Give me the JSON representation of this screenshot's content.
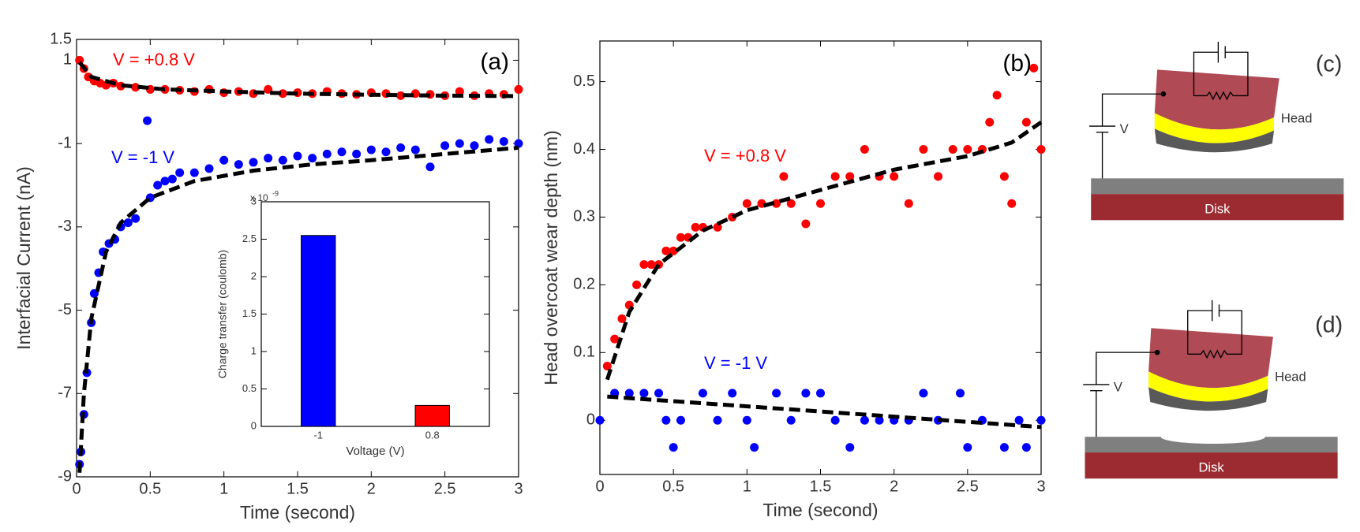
{
  "chart_data": [
    {
      "type": "scatter",
      "label": "(a)",
      "x_label": "Time (second)",
      "y_label": "Interfacial Current (nA)",
      "xlim": [
        0,
        3
      ],
      "ylim": [
        -9,
        1.5
      ],
      "xticks": [
        0,
        0.5,
        1,
        1.5,
        2,
        2.5,
        3
      ],
      "yticks": [
        -9,
        -7,
        -5,
        -3,
        -1,
        1,
        1.5
      ],
      "annotations": [
        {
          "text": "V = +0.8 V",
          "color": "#ff0000"
        },
        {
          "text": "V = -1 V",
          "color": "#0000ff"
        }
      ],
      "series": [
        {
          "color": "#ff0000",
          "x": [
            0.02,
            0.05,
            0.08,
            0.12,
            0.16,
            0.2,
            0.25,
            0.3,
            0.4,
            0.5,
            0.6,
            0.7,
            0.8,
            0.9,
            1.0,
            1.1,
            1.2,
            1.3,
            1.4,
            1.5,
            1.6,
            1.7,
            1.8,
            1.9,
            2.0,
            2.1,
            2.2,
            2.3,
            2.4,
            2.5,
            2.6,
            2.7,
            2.8,
            2.9,
            3.0
          ],
          "values": [
            1.0,
            0.8,
            0.6,
            0.5,
            0.45,
            0.4,
            0.45,
            0.38,
            0.35,
            0.3,
            0.3,
            0.28,
            0.25,
            0.3,
            0.22,
            0.25,
            0.2,
            0.3,
            0.2,
            0.22,
            0.2,
            0.25,
            0.2,
            0.18,
            0.22,
            0.2,
            0.15,
            0.2,
            0.18,
            0.15,
            0.25,
            0.15,
            0.2,
            0.18,
            0.3
          ]
        },
        {
          "color": "#0000ff",
          "x": [
            0.02,
            0.03,
            0.05,
            0.07,
            0.1,
            0.12,
            0.15,
            0.18,
            0.22,
            0.26,
            0.3,
            0.35,
            0.4,
            0.48,
            0.5,
            0.55,
            0.6,
            0.65,
            0.7,
            0.8,
            0.9,
            1.0,
            1.1,
            1.2,
            1.3,
            1.4,
            1.5,
            1.6,
            1.7,
            1.8,
            1.9,
            2.0,
            2.1,
            2.2,
            2.3,
            2.4,
            2.5,
            2.6,
            2.7,
            2.8,
            2.9,
            3.0
          ],
          "values": [
            -8.7,
            -8.4,
            -7.5,
            -6.5,
            -5.3,
            -4.6,
            -4.1,
            -3.6,
            -3.4,
            -3.3,
            -3.0,
            -2.9,
            -2.8,
            -0.45,
            -2.3,
            -2.0,
            -1.9,
            -1.85,
            -1.7,
            -1.7,
            -1.6,
            -1.4,
            -1.5,
            -1.45,
            -1.35,
            -1.4,
            -1.3,
            -1.35,
            -1.25,
            -1.2,
            -1.25,
            -1.15,
            -1.2,
            -1.1,
            -1.15,
            -1.56,
            -1.05,
            -1.0,
            -1.05,
            -0.9,
            -0.95,
            -1.0
          ]
        }
      ],
      "fits": [
        {
          "color": "#000000",
          "x": [
            0.02,
            0.1,
            0.3,
            0.6,
            1.0,
            1.5,
            2.0,
            2.5,
            3.0
          ],
          "values": [
            0.95,
            0.6,
            0.4,
            0.3,
            0.25,
            0.2,
            0.17,
            0.15,
            0.14
          ]
        },
        {
          "color": "#000000",
          "x": [
            0.02,
            0.05,
            0.1,
            0.2,
            0.3,
            0.5,
            0.8,
            1.2,
            1.6,
            2.0,
            2.5,
            3.0
          ],
          "values": [
            -8.9,
            -7,
            -5.2,
            -3.6,
            -2.9,
            -2.3,
            -1.9,
            -1.65,
            -1.5,
            -1.4,
            -1.25,
            -1.1
          ]
        }
      ]
    },
    {
      "type": "bar",
      "x_label": "Voltage (V)",
      "y_label": "Charge transfer (coulomb)",
      "y_multiplier": "x 10",
      "y_multiplier_exponent": "-9",
      "categories": [
        "-1",
        "0.8"
      ],
      "values": [
        2.55,
        0.28
      ],
      "colors": [
        "#0000ff",
        "#ff0000"
      ],
      "ylim": [
        0,
        3
      ],
      "yticks": [
        0,
        0.5,
        1,
        1.5,
        2,
        2.5,
        3
      ]
    },
    {
      "type": "scatter",
      "label": "(b)",
      "x_label": "Time (second)",
      "y_label": "Head overcoat wear depth (nm)",
      "xlim": [
        0,
        3
      ],
      "ylim": [
        -0.08,
        0.56
      ],
      "xticks": [
        0,
        0.5,
        1,
        1.5,
        2,
        2.5,
        3
      ],
      "yticks": [
        0,
        0.1,
        0.2,
        0.3,
        0.4,
        0.5
      ],
      "annotations": [
        {
          "text": "V = +0.8 V",
          "color": "#ff0000"
        },
        {
          "text": "V = -1 V",
          "color": "#0000ff"
        }
      ],
      "series": [
        {
          "color": "#ff0000",
          "x": [
            0.05,
            0.1,
            0.15,
            0.2,
            0.25,
            0.3,
            0.35,
            0.4,
            0.45,
            0.5,
            0.55,
            0.6,
            0.65,
            0.7,
            0.8,
            0.9,
            1.0,
            1.1,
            1.2,
            1.25,
            1.3,
            1.4,
            1.5,
            1.6,
            1.7,
            1.8,
            1.9,
            2.0,
            2.1,
            2.2,
            2.3,
            2.4,
            2.5,
            2.6,
            2.65,
            2.7,
            2.75,
            2.8,
            2.9,
            2.95,
            3.0
          ],
          "values": [
            0.08,
            0.12,
            0.15,
            0.17,
            0.2,
            0.23,
            0.23,
            0.23,
            0.25,
            0.25,
            0.27,
            0.27,
            0.285,
            0.285,
            0.285,
            0.3,
            0.32,
            0.32,
            0.32,
            0.36,
            0.32,
            0.29,
            0.32,
            0.36,
            0.36,
            0.4,
            0.36,
            0.36,
            0.32,
            0.4,
            0.36,
            0.4,
            0.4,
            0.4,
            0.44,
            0.48,
            0.36,
            0.32,
            0.44,
            0.52,
            0.4
          ]
        },
        {
          "color": "#0000ff",
          "x": [
            0,
            0.1,
            0.2,
            0.3,
            0.4,
            0.45,
            0.5,
            0.55,
            0.7,
            0.8,
            0.9,
            1.0,
            1.05,
            1.2,
            1.3,
            1.4,
            1.5,
            1.6,
            1.7,
            1.8,
            1.9,
            2.0,
            2.1,
            2.2,
            2.3,
            2.45,
            2.5,
            2.6,
            2.75,
            2.85,
            2.9,
            3.0
          ],
          "values": [
            0,
            0.04,
            0.04,
            0.04,
            0.04,
            0.0,
            -0.04,
            0.0,
            0.04,
            0.0,
            0.04,
            0.0,
            -0.04,
            0.04,
            0.0,
            0.04,
            0.04,
            0.0,
            -0.04,
            0.0,
            0.0,
            0.0,
            0.0,
            0.04,
            0.0,
            0.04,
            -0.04,
            0.0,
            -0.04,
            0.0,
            -0.04,
            0.0
          ]
        }
      ],
      "fits": [
        {
          "color": "#000000",
          "x": [
            0.05,
            0.2,
            0.4,
            0.7,
            1.0,
            1.5,
            2.0,
            2.5,
            2.8,
            3.0
          ],
          "values": [
            0.06,
            0.16,
            0.23,
            0.28,
            0.31,
            0.34,
            0.37,
            0.39,
            0.41,
            0.44
          ]
        },
        {
          "color": "#000000",
          "x": [
            0.05,
            1.5,
            3.0
          ],
          "values": [
            0.035,
            0.013,
            -0.01
          ]
        }
      ]
    }
  ],
  "diagrams": {
    "c": {
      "label": "(c)",
      "head": "Head",
      "voltage": "V",
      "disk": "Disk"
    },
    "d": {
      "label": "(d)",
      "head": "Head",
      "voltage": "V",
      "disk": "Disk"
    }
  }
}
